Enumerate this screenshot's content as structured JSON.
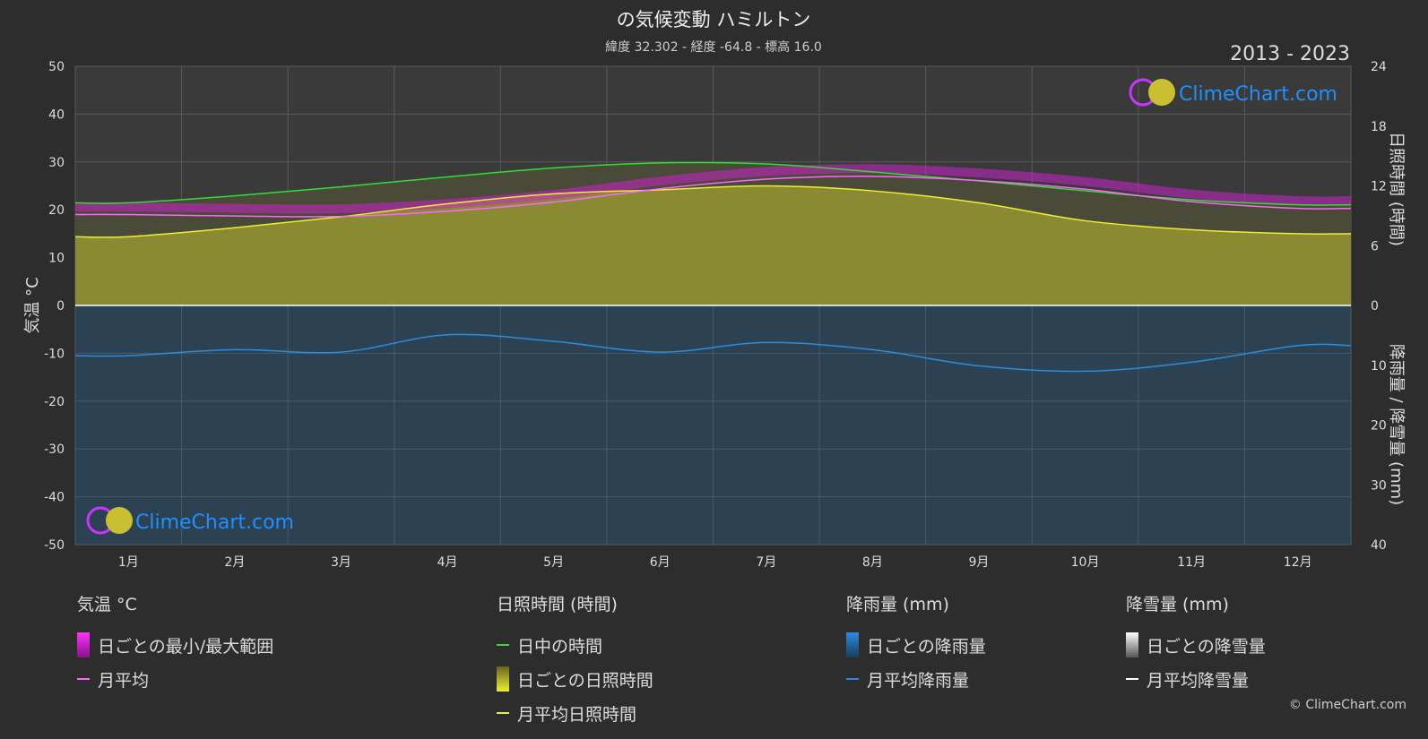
{
  "header": {
    "title": "の気候変動 ハミルトン",
    "subtitle": "緯度 32.302 - 経度 -64.8 - 標高 16.0",
    "period": "2013 - 2023"
  },
  "brand": {
    "logo_text": "ClimeChart.com",
    "copyright": "© ClimeChart.com"
  },
  "colors": {
    "background": "#2d2d2d",
    "temp_range": "#cc22cc",
    "temp_mean": "#ff66ff",
    "daylight": "#33dd33",
    "sunshine_fill": "#a0a030",
    "sunshine_mean": "#eeee33",
    "rain_fill": "#1f5f8f",
    "rain_mean": "#2b8be0",
    "snow_mean": "#ffffff",
    "brand_blue": "#1e90ff"
  },
  "chart_data": {
    "type": "line",
    "categories": [
      "1月",
      "2月",
      "3月",
      "4月",
      "5月",
      "6月",
      "7月",
      "8月",
      "9月",
      "10月",
      "11月",
      "12月"
    ],
    "left_axis": {
      "label": "気温 °C",
      "min": -50,
      "max": 50,
      "ticks": [
        "50",
        "40",
        "30",
        "20",
        "10",
        "0",
        "-10",
        "-20",
        "-30",
        "-40",
        "-50"
      ]
    },
    "right_axis_top": {
      "label": "日照時間 (時間)",
      "min": 0,
      "max": 24,
      "ticks": [
        "24",
        "18",
        "12",
        "6",
        "0"
      ]
    },
    "right_axis_bottom": {
      "label": "降雨量 / 降雪量 (mm)",
      "min": 0,
      "max": 40,
      "ticks": [
        "10",
        "20",
        "30",
        "40"
      ]
    },
    "grid": true,
    "series": [
      {
        "name": "日中の時間",
        "axis": "sunshine_hours",
        "values": [
          10.3,
          11.0,
          11.9,
          12.9,
          13.8,
          14.3,
          14.2,
          13.4,
          12.5,
          11.5,
          10.6,
          10.1
        ]
      },
      {
        "name": "月平均日照時間",
        "axis": "sunshine_hours",
        "values": [
          6.9,
          7.8,
          8.9,
          10.2,
          11.2,
          11.6,
          12.0,
          11.5,
          10.3,
          8.5,
          7.6,
          7.2
        ]
      },
      {
        "name": "月平均",
        "axis": "temperature_c",
        "values": [
          19.0,
          18.7,
          18.6,
          19.7,
          21.6,
          24.4,
          26.4,
          27.0,
          26.1,
          24.3,
          21.7,
          20.3
        ]
      },
      {
        "name": "月平均降雨量",
        "axis": "precipitation_mm",
        "values": [
          8.4,
          7.4,
          7.8,
          4.9,
          6.0,
          7.8,
          6.2,
          7.4,
          10.1,
          11.0,
          9.5,
          6.7
        ]
      }
    ],
    "legend_placement": "bottom"
  },
  "legend": {
    "groups": [
      {
        "title": "気温 °C",
        "items": [
          {
            "label": "日ごとの最小/最大範囲",
            "kind": "range-bar"
          },
          {
            "label": "月平均",
            "kind": "line"
          }
        ]
      },
      {
        "title": "日照時間 (時間)",
        "items": [
          {
            "label": "日中の時間",
            "kind": "line"
          },
          {
            "label": "日ごとの日照時間",
            "kind": "fill-bar"
          },
          {
            "label": "月平均日照時間",
            "kind": "line"
          }
        ]
      },
      {
        "title": "降雨量 (mm)",
        "items": [
          {
            "label": "日ごとの降雨量",
            "kind": "rain-bar"
          },
          {
            "label": "月平均降雨量",
            "kind": "line"
          }
        ]
      },
      {
        "title": "降雪量 (mm)",
        "items": [
          {
            "label": "日ごとの降雪量",
            "kind": "snow-bar"
          },
          {
            "label": "月平均降雪量",
            "kind": "line"
          }
        ]
      }
    ]
  }
}
